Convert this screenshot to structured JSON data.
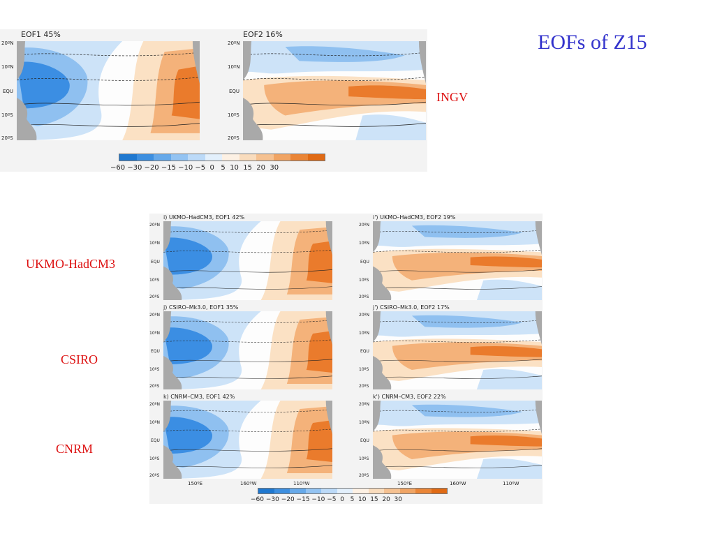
{
  "slide": {
    "title": "EOFs of Z15"
  },
  "labels": {
    "ingv": "INGV",
    "ukmo": "UKMO-HadCM3",
    "csiro": "CSIRO",
    "cnrm": "CNRM"
  },
  "ingv_figure": {
    "panels": [
      {
        "title": "EOF1 45%"
      },
      {
        "title": "EOF2 16%"
      }
    ]
  },
  "model_figure": {
    "panels": [
      {
        "title": "i) UKMO–HadCM3, EOF1 42%"
      },
      {
        "title": "i') UKMO–HadCM3, EOF2 19%"
      },
      {
        "title": "j) CSIRO–Mk3.0, EOF1 35%"
      },
      {
        "title": "j') CSIRO–Mk3.0, EOF2 17%"
      },
      {
        "title": "k) CNRM–CM3, EOF1 42%"
      },
      {
        "title": "k') CNRM–CM3, EOF2 22%"
      }
    ],
    "lon_labels": [
      "150ºE",
      "160ºW",
      "110ºW"
    ]
  },
  "lat_labels": [
    "20ºN",
    "10ºN",
    "EQU",
    "10ºS",
    "20ºS"
  ],
  "colorbar": {
    "labels": "−60 −30 −20 −15 −10 −5  0   5  10  15  20  30",
    "colors": [
      "#1f78d0",
      "#3d8fe0",
      "#66a9ea",
      "#93c3f2",
      "#bcdaf8",
      "#e3f0fc",
      "#fdf1e4",
      "#f9dcbd",
      "#f5c191",
      "#f0a464",
      "#ea8536",
      "#e06a14"
    ]
  },
  "map_colors": {
    "neg_strong": "#3b8ee3",
    "neg_mid": "#8fc0f0",
    "neg_weak": "#cde3f8",
    "pos_weak": "#fbe1c4",
    "pos_mid": "#f4b27a",
    "pos_strong": "#ea7b2c",
    "land": "#a9a9a9",
    "contour": "#222222"
  }
}
